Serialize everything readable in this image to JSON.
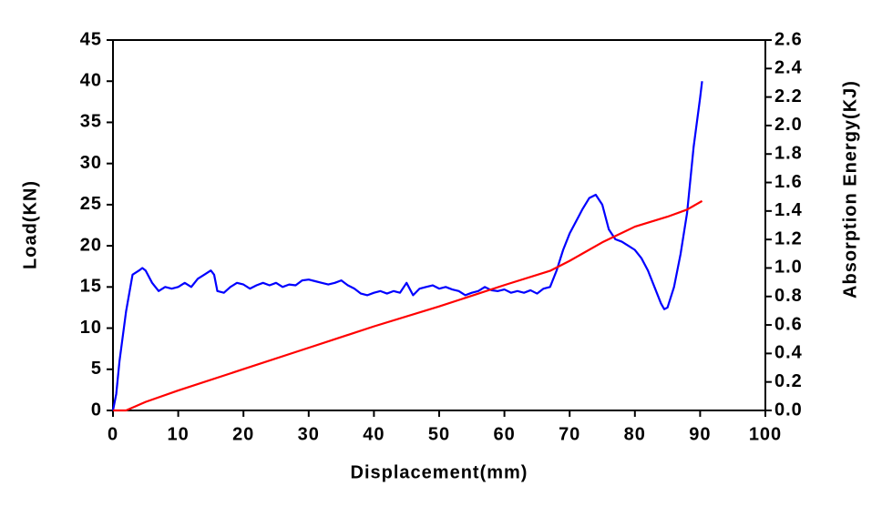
{
  "chart_data": {
    "type": "line",
    "xlabel": "Displacement(mm)",
    "ylabel": "Load(KN)",
    "y2label": "Absorption Energy(KJ)",
    "xlim": [
      0,
      100
    ],
    "xticks": [
      0,
      10,
      20,
      30,
      40,
      50,
      60,
      70,
      80,
      90,
      100
    ],
    "ylim": [
      0,
      45
    ],
    "yticks": [
      0,
      5,
      10,
      15,
      20,
      25,
      30,
      35,
      40,
      45
    ],
    "y2lim": [
      0,
      2.6
    ],
    "y2ticks": [
      {
        "value": 0,
        "label": "0.0"
      },
      0.2,
      0.4,
      0.6,
      0.8,
      {
        "value": 1,
        "label": "1.0"
      },
      1.2,
      1.4,
      1.6,
      1.8,
      {
        "value": 2,
        "label": "2.0"
      },
      2.2,
      2.4,
      2.6
    ],
    "series": [
      {
        "color": "#0000ff",
        "x": [
          0,
          0.5,
          1,
          2,
          3,
          4,
          4.5,
          5,
          6,
          7,
          8,
          9,
          10,
          11,
          12,
          13,
          14,
          15,
          15.5,
          16,
          17,
          18,
          19,
          20,
          21,
          22,
          23,
          24,
          25,
          26,
          27,
          28,
          29,
          30,
          31,
          32,
          33,
          34,
          35,
          36,
          37,
          38,
          39,
          40,
          41,
          42,
          43,
          44,
          45,
          46,
          47,
          48,
          49,
          50,
          51,
          52,
          53,
          54,
          55,
          56,
          57,
          58,
          59,
          60,
          61,
          62,
          63,
          64,
          65,
          66,
          67,
          68,
          69,
          70,
          71,
          72,
          73,
          74,
          75,
          76,
          77,
          78,
          79,
          80,
          81,
          82,
          83,
          84,
          84.5,
          85,
          86,
          87,
          88,
          89,
          90,
          90.3
        ],
        "values": [
          0,
          2,
          6,
          12,
          16.5,
          17,
          17.3,
          17,
          15.5,
          14.5,
          15,
          14.8,
          15,
          15.5,
          15,
          16,
          16.5,
          17,
          16.5,
          14.5,
          14.3,
          15,
          15.5,
          15.3,
          14.8,
          15.2,
          15.5,
          15.2,
          15.5,
          15,
          15.3,
          15.2,
          15.8,
          15.9,
          15.7,
          15.5,
          15.3,
          15.5,
          15.8,
          15.2,
          14.8,
          14.2,
          14,
          14.3,
          14.5,
          14.2,
          14.5,
          14.3,
          15.5,
          14,
          14.8,
          15,
          15.2,
          14.8,
          15,
          14.7,
          14.5,
          14,
          14.3,
          14.5,
          15,
          14.6,
          14.5,
          14.7,
          14.3,
          14.5,
          14.3,
          14.6,
          14.2,
          14.8,
          15,
          17,
          19.5,
          21.5,
          23,
          24.5,
          25.8,
          26.2,
          25,
          22,
          20.8,
          20.5,
          20,
          19.5,
          18.5,
          17,
          15,
          13,
          12.3,
          12.5,
          15,
          19,
          24,
          32,
          38,
          40
        ]
      },
      {
        "color": "#ff0000",
        "axis": "y2",
        "x": [
          0,
          2,
          5,
          10,
          20,
          30,
          40,
          50,
          60,
          67,
          70,
          75,
          80,
          85,
          88,
          90.3
        ],
        "values": [
          0,
          0,
          0.06,
          0.14,
          0.29,
          0.44,
          0.59,
          0.73,
          0.88,
          0.98,
          1.05,
          1.18,
          1.29,
          1.36,
          1.41,
          1.47
        ]
      }
    ]
  }
}
